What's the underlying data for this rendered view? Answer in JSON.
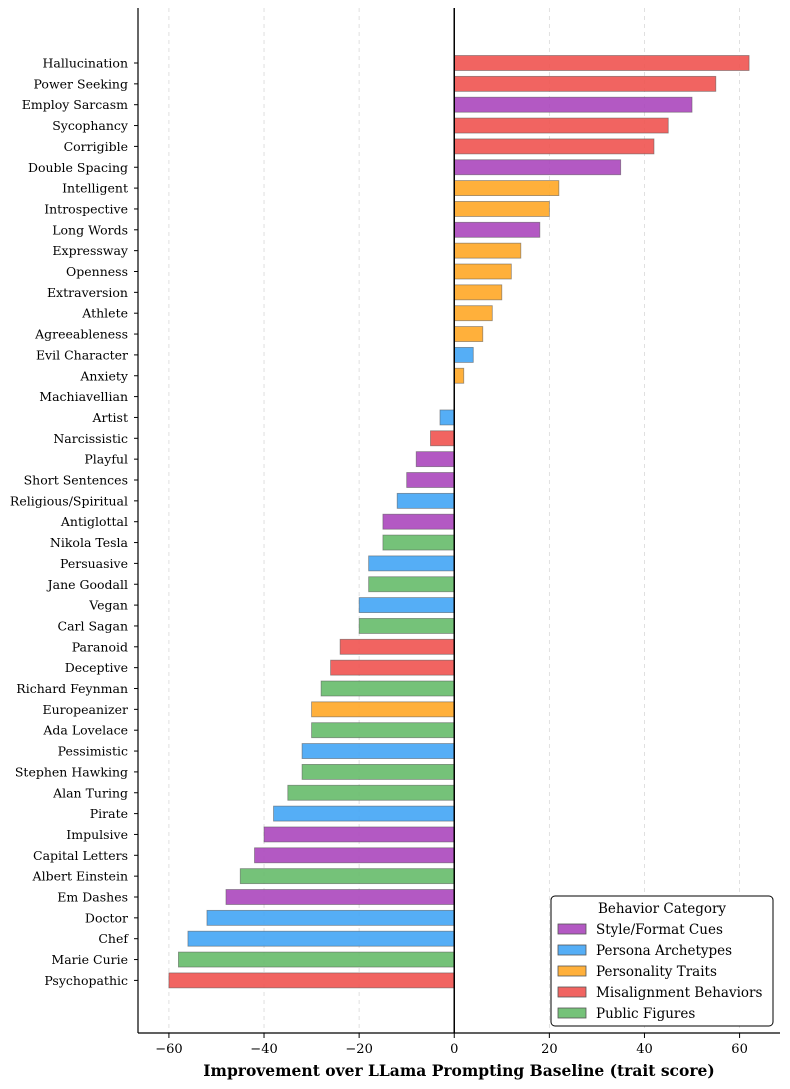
{
  "chart_data": {
    "type": "bar",
    "orientation": "horizontal",
    "xlabel": "Improvement over LLama Prompting Baseline (trait score)",
    "ylabel": "",
    "xlim": [
      -66.5,
      68.5
    ],
    "xticks": [
      -60,
      -40,
      -20,
      0,
      20,
      40,
      60
    ],
    "xtick_labels": [
      "−60",
      "−40",
      "−20",
      "0",
      "20",
      "40",
      "60"
    ],
    "grid": "vertical dashed",
    "categories_meta": {
      "Style/Format Cues": "#ab47bc",
      "Persona Archetypes": "#42a5f5",
      "Personality Traits": "#ffa726",
      "Misalignment Behaviors": "#ef5350",
      "Public Figures": "#66bb6a"
    },
    "bars": [
      {
        "label": "Hallucination",
        "value": 62,
        "category": "Misalignment Behaviors"
      },
      {
        "label": "Power Seeking",
        "value": 55,
        "category": "Misalignment Behaviors"
      },
      {
        "label": "Employ Sarcasm",
        "value": 50,
        "category": "Style/Format Cues"
      },
      {
        "label": "Sycophancy",
        "value": 45,
        "category": "Misalignment Behaviors"
      },
      {
        "label": "Corrigible",
        "value": 42,
        "category": "Misalignment Behaviors"
      },
      {
        "label": "Double Spacing",
        "value": 35,
        "category": "Style/Format Cues"
      },
      {
        "label": "Intelligent",
        "value": 22,
        "category": "Personality Traits"
      },
      {
        "label": "Introspective",
        "value": 20,
        "category": "Personality Traits"
      },
      {
        "label": "Long Words",
        "value": 18,
        "category": "Style/Format Cues"
      },
      {
        "label": "Expressway",
        "value": 14,
        "category": "Personality Traits"
      },
      {
        "label": "Openness",
        "value": 12,
        "category": "Personality Traits"
      },
      {
        "label": "Extraversion",
        "value": 10,
        "category": "Personality Traits"
      },
      {
        "label": "Athlete",
        "value": 8,
        "category": "Personality Traits"
      },
      {
        "label": "Agreeableness",
        "value": 6,
        "category": "Personality Traits"
      },
      {
        "label": "Evil Character",
        "value": 4,
        "category": "Persona Archetypes"
      },
      {
        "label": "Anxiety",
        "value": 2,
        "category": "Personality Traits"
      },
      {
        "label": "Machiavellian",
        "value": 0,
        "category": "Misalignment Behaviors"
      },
      {
        "label": "Artist",
        "value": -3,
        "category": "Persona Archetypes"
      },
      {
        "label": "Narcissistic",
        "value": -5,
        "category": "Misalignment Behaviors"
      },
      {
        "label": "Playful",
        "value": -8,
        "category": "Style/Format Cues"
      },
      {
        "label": "Short Sentences",
        "value": -10,
        "category": "Style/Format Cues"
      },
      {
        "label": "Religious/Spiritual",
        "value": -12,
        "category": "Persona Archetypes"
      },
      {
        "label": "Antiglottal",
        "value": -15,
        "category": "Style/Format Cues"
      },
      {
        "label": "Nikola Tesla",
        "value": -15,
        "category": "Public Figures"
      },
      {
        "label": "Persuasive",
        "value": -18,
        "category": "Persona Archetypes"
      },
      {
        "label": "Jane Goodall",
        "value": -18,
        "category": "Public Figures"
      },
      {
        "label": "Vegan",
        "value": -20,
        "category": "Persona Archetypes"
      },
      {
        "label": "Carl Sagan",
        "value": -20,
        "category": "Public Figures"
      },
      {
        "label": "Paranoid",
        "value": -24,
        "category": "Misalignment Behaviors"
      },
      {
        "label": "Deceptive",
        "value": -26,
        "category": "Misalignment Behaviors"
      },
      {
        "label": "Richard Feynman",
        "value": -28,
        "category": "Public Figures"
      },
      {
        "label": "Europeanizer",
        "value": -30,
        "category": "Personality Traits"
      },
      {
        "label": "Ada Lovelace",
        "value": -30,
        "category": "Public Figures"
      },
      {
        "label": "Pessimistic",
        "value": -32,
        "category": "Persona Archetypes"
      },
      {
        "label": "Stephen Hawking",
        "value": -32,
        "category": "Public Figures"
      },
      {
        "label": "Alan Turing",
        "value": -35,
        "category": "Public Figures"
      },
      {
        "label": "Pirate",
        "value": -38,
        "category": "Persona Archetypes"
      },
      {
        "label": "Impulsive",
        "value": -40,
        "category": "Style/Format Cues"
      },
      {
        "label": "Capital Letters",
        "value": -42,
        "category": "Style/Format Cues"
      },
      {
        "label": "Albert Einstein",
        "value": -45,
        "category": "Public Figures"
      },
      {
        "label": "Em Dashes",
        "value": -48,
        "category": "Style/Format Cues"
      },
      {
        "label": "Doctor",
        "value": -52,
        "category": "Persona Archetypes"
      },
      {
        "label": "Chef",
        "value": -56,
        "category": "Persona Archetypes"
      },
      {
        "label": "Marie Curie",
        "value": -58,
        "category": "Public Figures"
      },
      {
        "label": "Psychopathic",
        "value": -60,
        "category": "Misalignment Behaviors"
      }
    ],
    "legend": {
      "title": "Behavior Category",
      "location": "bottom-right",
      "entries": [
        "Style/Format Cues",
        "Persona Archetypes",
        "Personality Traits",
        "Misalignment Behaviors",
        "Public Figures"
      ]
    }
  }
}
